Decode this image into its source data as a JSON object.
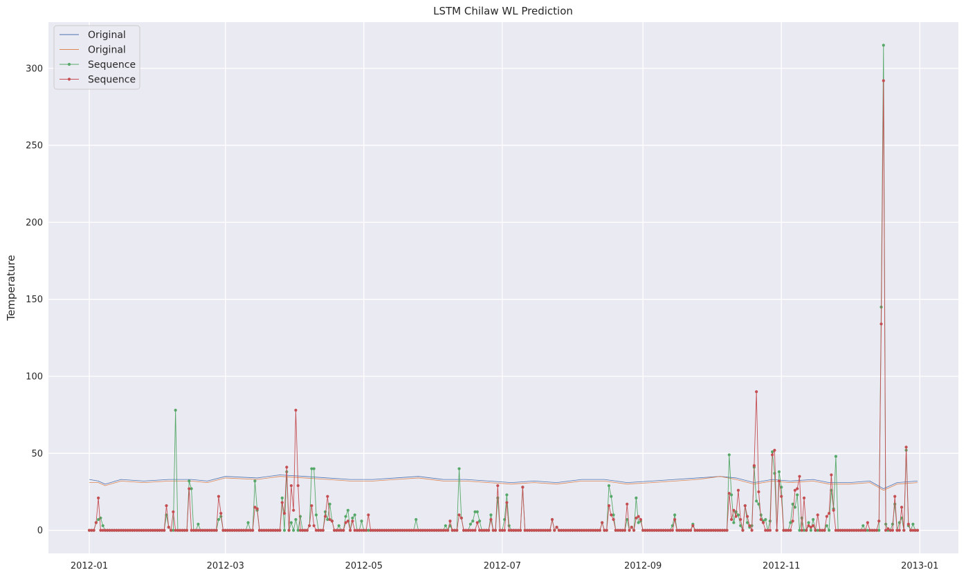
{
  "chart_data": {
    "type": "line",
    "title": "LSTM Chilaw WL Prediction",
    "xlabel": "",
    "ylabel": "Temperature",
    "xlim": [
      "2011-12-14",
      "2013-01-18"
    ],
    "ylim": [
      -15,
      330
    ],
    "x_ticks": [
      "2012-01",
      "2012-03",
      "2012-05",
      "2012-07",
      "2012-09",
      "2012-11",
      "2013-01"
    ],
    "y_ticks": [
      0,
      50,
      100,
      150,
      200,
      250,
      300
    ],
    "grid": true,
    "legend_position": "top-left",
    "background": "#eaeaf2",
    "series": [
      {
        "name": "Original",
        "style": "line",
        "color": "#4c72b0",
        "points": [
          [
            "2012-01-01",
            33
          ],
          [
            "2012-01-05",
            32
          ],
          [
            "2012-01-08",
            30
          ],
          [
            "2012-01-15",
            33
          ],
          [
            "2012-01-25",
            32
          ],
          [
            "2012-02-05",
            33
          ],
          [
            "2012-02-15",
            33
          ],
          [
            "2012-02-22",
            32
          ],
          [
            "2012-03-01",
            35
          ],
          [
            "2012-03-15",
            34
          ],
          [
            "2012-03-25",
            36
          ],
          [
            "2012-04-05",
            35
          ],
          [
            "2012-04-15",
            34
          ],
          [
            "2012-04-25",
            33
          ],
          [
            "2012-05-05",
            33
          ],
          [
            "2012-05-15",
            34
          ],
          [
            "2012-05-25",
            35
          ],
          [
            "2012-06-05",
            33
          ],
          [
            "2012-06-15",
            33
          ],
          [
            "2012-06-25",
            32
          ],
          [
            "2012-07-05",
            31
          ],
          [
            "2012-07-15",
            32
          ],
          [
            "2012-07-25",
            31
          ],
          [
            "2012-08-05",
            33
          ],
          [
            "2012-08-15",
            33
          ],
          [
            "2012-08-25",
            31
          ],
          [
            "2012-09-05",
            32
          ],
          [
            "2012-09-15",
            33
          ],
          [
            "2012-09-25",
            34
          ],
          [
            "2012-10-05",
            35
          ],
          [
            "2012-10-12",
            34
          ],
          [
            "2012-10-20",
            31
          ],
          [
            "2012-10-28",
            33
          ],
          [
            "2012-11-05",
            32
          ],
          [
            "2012-11-15",
            33
          ],
          [
            "2012-11-22",
            31
          ],
          [
            "2012-12-01",
            31
          ],
          [
            "2012-12-10",
            32
          ],
          [
            "2012-12-16",
            27
          ],
          [
            "2012-12-22",
            31
          ],
          [
            "2012-12-31",
            32
          ]
        ]
      },
      {
        "name": "Original",
        "style": "line",
        "color": "#dd8452",
        "points": [
          [
            "2012-01-01",
            31
          ],
          [
            "2012-01-05",
            31
          ],
          [
            "2012-01-08",
            29
          ],
          [
            "2012-01-15",
            32
          ],
          [
            "2012-01-25",
            31
          ],
          [
            "2012-02-05",
            32
          ],
          [
            "2012-02-15",
            32
          ],
          [
            "2012-02-22",
            31
          ],
          [
            "2012-03-01",
            34
          ],
          [
            "2012-03-15",
            33
          ],
          [
            "2012-03-25",
            35
          ],
          [
            "2012-04-05",
            34
          ],
          [
            "2012-04-15",
            33
          ],
          [
            "2012-04-25",
            32
          ],
          [
            "2012-05-05",
            32
          ],
          [
            "2012-05-15",
            33
          ],
          [
            "2012-05-25",
            34
          ],
          [
            "2012-06-05",
            32
          ],
          [
            "2012-06-15",
            32
          ],
          [
            "2012-06-25",
            31
          ],
          [
            "2012-07-05",
            30
          ],
          [
            "2012-07-15",
            31
          ],
          [
            "2012-07-25",
            30
          ],
          [
            "2012-08-05",
            32
          ],
          [
            "2012-08-15",
            32
          ],
          [
            "2012-08-25",
            30
          ],
          [
            "2012-09-05",
            31
          ],
          [
            "2012-09-15",
            32
          ],
          [
            "2012-09-25",
            33
          ],
          [
            "2012-10-05",
            35
          ],
          [
            "2012-10-12",
            33
          ],
          [
            "2012-10-20",
            30
          ],
          [
            "2012-10-28",
            32
          ],
          [
            "2012-11-05",
            31
          ],
          [
            "2012-11-15",
            32
          ],
          [
            "2012-11-22",
            30
          ],
          [
            "2012-12-01",
            30
          ],
          [
            "2012-12-10",
            31
          ],
          [
            "2012-12-16",
            26
          ],
          [
            "2012-12-22",
            30
          ],
          [
            "2012-12-31",
            31
          ]
        ]
      },
      {
        "name": "Sequence",
        "style": "line-markers",
        "color": "#55a868",
        "baseline": 0,
        "start": "2012-01-01",
        "end": "2012-12-31",
        "nonzero": [
          [
            "2012-01-04",
            5
          ],
          [
            "2012-01-05",
            7
          ],
          [
            "2012-01-06",
            8
          ],
          [
            "2012-01-07",
            3
          ],
          [
            "2012-02-04",
            10
          ],
          [
            "2012-02-05",
            2
          ],
          [
            "2012-02-08",
            78
          ],
          [
            "2012-02-14",
            32
          ],
          [
            "2012-02-15",
            27
          ],
          [
            "2012-02-18",
            4
          ],
          [
            "2012-02-27",
            7
          ],
          [
            "2012-02-28",
            9
          ],
          [
            "2012-03-11",
            5
          ],
          [
            "2012-03-14",
            32
          ],
          [
            "2012-03-15",
            13
          ],
          [
            "2012-03-26",
            21
          ],
          [
            "2012-03-28",
            38
          ],
          [
            "2012-03-30",
            5
          ],
          [
            "2012-04-01",
            7
          ],
          [
            "2012-04-03",
            9
          ],
          [
            "2012-04-07",
            3
          ],
          [
            "2012-04-08",
            40
          ],
          [
            "2012-04-09",
            40
          ],
          [
            "2012-04-10",
            10
          ],
          [
            "2012-04-14",
            12
          ],
          [
            "2012-04-15",
            7
          ],
          [
            "2012-04-16",
            17
          ],
          [
            "2012-04-17",
            6
          ],
          [
            "2012-04-20",
            3
          ],
          [
            "2012-04-23",
            9
          ],
          [
            "2012-04-24",
            13
          ],
          [
            "2012-04-26",
            8
          ],
          [
            "2012-04-27",
            10
          ],
          [
            "2012-04-30",
            6
          ],
          [
            "2012-05-24",
            7
          ],
          [
            "2012-06-06",
            3
          ],
          [
            "2012-06-08",
            3
          ],
          [
            "2012-06-12",
            40
          ],
          [
            "2012-06-13",
            8
          ],
          [
            "2012-06-17",
            4
          ],
          [
            "2012-06-18",
            6
          ],
          [
            "2012-06-19",
            12
          ],
          [
            "2012-06-20",
            12
          ],
          [
            "2012-06-21",
            6
          ],
          [
            "2012-06-26",
            10
          ],
          [
            "2012-06-29",
            21
          ],
          [
            "2012-07-02",
            7
          ],
          [
            "2012-07-03",
            23
          ],
          [
            "2012-07-04",
            3
          ],
          [
            "2012-07-10",
            28
          ],
          [
            "2012-07-23",
            7
          ],
          [
            "2012-07-25",
            2
          ],
          [
            "2012-08-14",
            5
          ],
          [
            "2012-08-17",
            29
          ],
          [
            "2012-08-18",
            22
          ],
          [
            "2012-08-19",
            10
          ],
          [
            "2012-08-25",
            7
          ],
          [
            "2012-08-27",
            2
          ],
          [
            "2012-08-29",
            21
          ],
          [
            "2012-08-30",
            5
          ],
          [
            "2012-08-31",
            6
          ],
          [
            "2012-09-14",
            3
          ],
          [
            "2012-09-15",
            10
          ],
          [
            "2012-09-23",
            4
          ],
          [
            "2012-10-09",
            49
          ],
          [
            "2012-10-10",
            23
          ],
          [
            "2012-10-11",
            5
          ],
          [
            "2012-10-12",
            12
          ],
          [
            "2012-10-13",
            10
          ],
          [
            "2012-10-14",
            3
          ],
          [
            "2012-10-16",
            16
          ],
          [
            "2012-10-17",
            5
          ],
          [
            "2012-10-18",
            2
          ],
          [
            "2012-10-19",
            3
          ],
          [
            "2012-10-20",
            41
          ],
          [
            "2012-10-21",
            19
          ],
          [
            "2012-10-22",
            17
          ],
          [
            "2012-10-23",
            10
          ],
          [
            "2012-10-24",
            6
          ],
          [
            "2012-10-25",
            7
          ],
          [
            "2012-10-27",
            6
          ],
          [
            "2012-10-28",
            51
          ],
          [
            "2012-10-29",
            37
          ],
          [
            "2012-10-31",
            38
          ],
          [
            "2012-11-01",
            28
          ],
          [
            "2012-11-05",
            5
          ],
          [
            "2012-11-06",
            17
          ],
          [
            "2012-11-07",
            15
          ],
          [
            "2012-11-08",
            23
          ],
          [
            "2012-11-10",
            8
          ],
          [
            "2012-11-13",
            5
          ],
          [
            "2012-11-15",
            7
          ],
          [
            "2012-11-21",
            3
          ],
          [
            "2012-11-23",
            26
          ],
          [
            "2012-11-24",
            14
          ],
          [
            "2012-11-25",
            48
          ],
          [
            "2012-12-07",
            3
          ],
          [
            "2012-12-15",
            145
          ],
          [
            "2012-12-16",
            315
          ],
          [
            "2012-12-17",
            4
          ],
          [
            "2012-12-20",
            4
          ],
          [
            "2012-12-21",
            17
          ],
          [
            "2012-12-23",
            5
          ],
          [
            "2012-12-24",
            8
          ],
          [
            "2012-12-26",
            52
          ],
          [
            "2012-12-27",
            3
          ],
          [
            "2012-12-29",
            4
          ]
        ]
      },
      {
        "name": "Sequence",
        "style": "line-markers",
        "color": "#c44e52",
        "baseline": 0,
        "start": "2012-01-01",
        "end": "2012-12-31",
        "nonzero": [
          [
            "2012-01-04",
            5
          ],
          [
            "2012-01-05",
            21
          ],
          [
            "2012-02-04",
            16
          ],
          [
            "2012-02-05",
            2
          ],
          [
            "2012-02-07",
            12
          ],
          [
            "2012-02-14",
            27
          ],
          [
            "2012-02-27",
            22
          ],
          [
            "2012-02-28",
            11
          ],
          [
            "2012-03-14",
            15
          ],
          [
            "2012-03-15",
            14
          ],
          [
            "2012-03-26",
            18
          ],
          [
            "2012-03-27",
            11
          ],
          [
            "2012-03-28",
            41
          ],
          [
            "2012-03-30",
            29
          ],
          [
            "2012-03-31",
            13
          ],
          [
            "2012-04-01",
            78
          ],
          [
            "2012-04-02",
            29
          ],
          [
            "2012-04-07",
            3
          ],
          [
            "2012-04-08",
            16
          ],
          [
            "2012-04-09",
            3
          ],
          [
            "2012-04-14",
            9
          ],
          [
            "2012-04-15",
            22
          ],
          [
            "2012-04-16",
            7
          ],
          [
            "2012-04-17",
            6
          ],
          [
            "2012-04-23",
            5
          ],
          [
            "2012-04-24",
            6
          ],
          [
            "2012-04-26",
            6
          ],
          [
            "2012-05-03",
            10
          ],
          [
            "2012-06-08",
            6
          ],
          [
            "2012-06-12",
            10
          ],
          [
            "2012-06-13",
            8
          ],
          [
            "2012-06-20",
            5
          ],
          [
            "2012-06-26",
            7
          ],
          [
            "2012-06-29",
            29
          ],
          [
            "2012-07-03",
            18
          ],
          [
            "2012-07-10",
            28
          ],
          [
            "2012-07-23",
            7
          ],
          [
            "2012-07-25",
            2
          ],
          [
            "2012-08-14",
            5
          ],
          [
            "2012-08-17",
            16
          ],
          [
            "2012-08-18",
            10
          ],
          [
            "2012-08-19",
            7
          ],
          [
            "2012-08-25",
            17
          ],
          [
            "2012-08-27",
            2
          ],
          [
            "2012-08-29",
            8
          ],
          [
            "2012-08-30",
            9
          ],
          [
            "2012-08-31",
            7
          ],
          [
            "2012-09-15",
            7
          ],
          [
            "2012-09-23",
            3
          ],
          [
            "2012-10-09",
            24
          ],
          [
            "2012-10-10",
            7
          ],
          [
            "2012-10-11",
            13
          ],
          [
            "2012-10-12",
            9
          ],
          [
            "2012-10-13",
            26
          ],
          [
            "2012-10-14",
            7
          ],
          [
            "2012-10-16",
            16
          ],
          [
            "2012-10-17",
            9
          ],
          [
            "2012-10-18",
            3
          ],
          [
            "2012-10-20",
            42
          ],
          [
            "2012-10-21",
            90
          ],
          [
            "2012-10-22",
            25
          ],
          [
            "2012-10-23",
            7
          ],
          [
            "2012-10-24",
            5
          ],
          [
            "2012-10-28",
            49
          ],
          [
            "2012-10-29",
            52
          ],
          [
            "2012-10-31",
            32
          ],
          [
            "2012-11-01",
            22
          ],
          [
            "2012-11-06",
            6
          ],
          [
            "2012-11-07",
            26
          ],
          [
            "2012-11-08",
            27
          ],
          [
            "2012-11-09",
            35
          ],
          [
            "2012-11-11",
            21
          ],
          [
            "2012-11-13",
            3
          ],
          [
            "2012-11-14",
            2
          ],
          [
            "2012-11-15",
            3
          ],
          [
            "2012-11-17",
            10
          ],
          [
            "2012-11-21",
            9
          ],
          [
            "2012-11-22",
            11
          ],
          [
            "2012-11-23",
            36
          ],
          [
            "2012-11-24",
            13
          ],
          [
            "2012-12-09",
            5
          ],
          [
            "2012-12-14",
            6
          ],
          [
            "2012-12-15",
            134
          ],
          [
            "2012-12-16",
            292
          ],
          [
            "2012-12-18",
            1
          ],
          [
            "2012-12-21",
            22
          ],
          [
            "2012-12-24",
            15
          ],
          [
            "2012-12-26",
            54
          ],
          [
            "2012-12-27",
            4
          ]
        ]
      }
    ]
  }
}
